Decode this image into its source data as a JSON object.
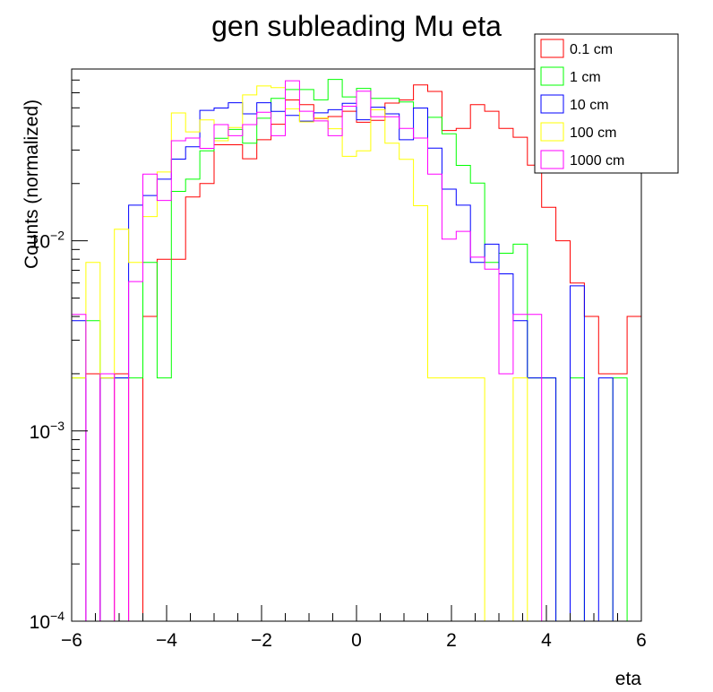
{
  "chart_data": {
    "type": "histogram",
    "title": "gen subleading Mu eta",
    "xlabel": "eta",
    "ylabel": "Counts (normalized)",
    "xlim": [
      -6,
      6
    ],
    "ylim": [
      0.0001,
      0.08
    ],
    "yscale": "log",
    "bin_width": 0.3,
    "x_ticks": [
      -6,
      -4,
      -2,
      0,
      2,
      4,
      6
    ],
    "x_tick_labels": [
      "−6",
      "−4",
      "−2",
      "0",
      "2",
      "4",
      "6"
    ],
    "y_ticks": [
      0.0001,
      0.001,
      0.01
    ],
    "y_tick_bases": [
      "10",
      "10",
      "10"
    ],
    "y_tick_exponents": [
      "−4",
      "−3",
      "−2"
    ],
    "grid": false,
    "legend_position": "top-right",
    "series": [
      {
        "name": "0.1 cm",
        "color": "#ff0000",
        "values": [
          0,
          0.002,
          0,
          0.002,
          0,
          0.004,
          0.008,
          0.008,
          0.017,
          0.02,
          0.032,
          0.032,
          0.027,
          0.034,
          0.041,
          0.055,
          0.052,
          0.044,
          0.045,
          0.048,
          0.042,
          0.043,
          0.053,
          0.055,
          0.066,
          0.061,
          0.038,
          0.039,
          0.052,
          0.048,
          0.039,
          0.035,
          0.025,
          0.015,
          0.01,
          0.006,
          0.004,
          0.002,
          0.002,
          0.004
        ]
      },
      {
        "name": "1 cm",
        "color": "#00ff00",
        "values": [
          0.0019,
          0.0038,
          0.0019,
          0.0019,
          0.0019,
          0.0077,
          0.0019,
          0.0182,
          0.0211,
          0.0297,
          0.0346,
          0.0385,
          0.0326,
          0.0441,
          0.0561,
          0.0624,
          0.0624,
          0.0551,
          0.0705,
          0.0571,
          0.0633,
          0.0561,
          0.0561,
          0.0537,
          0.0499,
          0.0446,
          0.0365,
          0.0249,
          0.0201,
          0.0077,
          0.0086,
          0.0096,
          0.0019,
          0.0019,
          0,
          0.0019,
          0,
          0,
          0.0019,
          0
        ]
      },
      {
        "name": "10 cm",
        "color": "#0000ff",
        "values": [
          0.0038,
          0,
          0.0019,
          0.0019,
          0.0154,
          0.0173,
          0.0211,
          0.0269,
          0.0312,
          0.0485,
          0.0499,
          0.0532,
          0.0465,
          0.0532,
          0.0479,
          0.0456,
          0.0426,
          0.0471,
          0.0489,
          0.0528,
          0.0433,
          0.0504,
          0.0465,
          0.034,
          0.0499,
          0.0307,
          0.0187,
          0.0154,
          0.0077,
          0.0096,
          0.0067,
          0.0038,
          0.0019,
          0.0019,
          0,
          0.0058,
          0,
          0.0019,
          0,
          0
        ]
      },
      {
        "name": "100 cm",
        "color": "#ffff00",
        "values": [
          0.0019,
          0.0077,
          0.0019,
          0.0115,
          0.0077,
          0.0134,
          0.023,
          0.047,
          0.0374,
          0.0432,
          0.0336,
          0.0394,
          0.0585,
          0.0652,
          0.0639,
          0.0494,
          0.0422,
          0.0442,
          0.0388,
          0.0278,
          0.0297,
          0.0489,
          0.0326,
          0.0268,
          0.0153,
          0.0019,
          0.0019,
          0.0019,
          0.0019,
          0,
          0,
          0.0019,
          0,
          0,
          0,
          0,
          0,
          0,
          0,
          0
        ]
      },
      {
        "name": "1000 cm",
        "color": "#ff00ff",
        "values": [
          0.0041,
          0,
          0.002,
          0,
          0.0061,
          0.0224,
          0.0163,
          0.0336,
          0.0347,
          0.0306,
          0.0408,
          0.0357,
          0.0408,
          0.0474,
          0.0357,
          0.0694,
          0.048,
          0.0427,
          0.0357,
          0.051,
          0.0612,
          0.0449,
          0.0449,
          0.039,
          0.0347,
          0.0224,
          0.0102,
          0.0112,
          0.0082,
          0.0071,
          0.002,
          0.0041,
          0.0041,
          0,
          0,
          0,
          0,
          0,
          0,
          0
        ]
      }
    ]
  }
}
